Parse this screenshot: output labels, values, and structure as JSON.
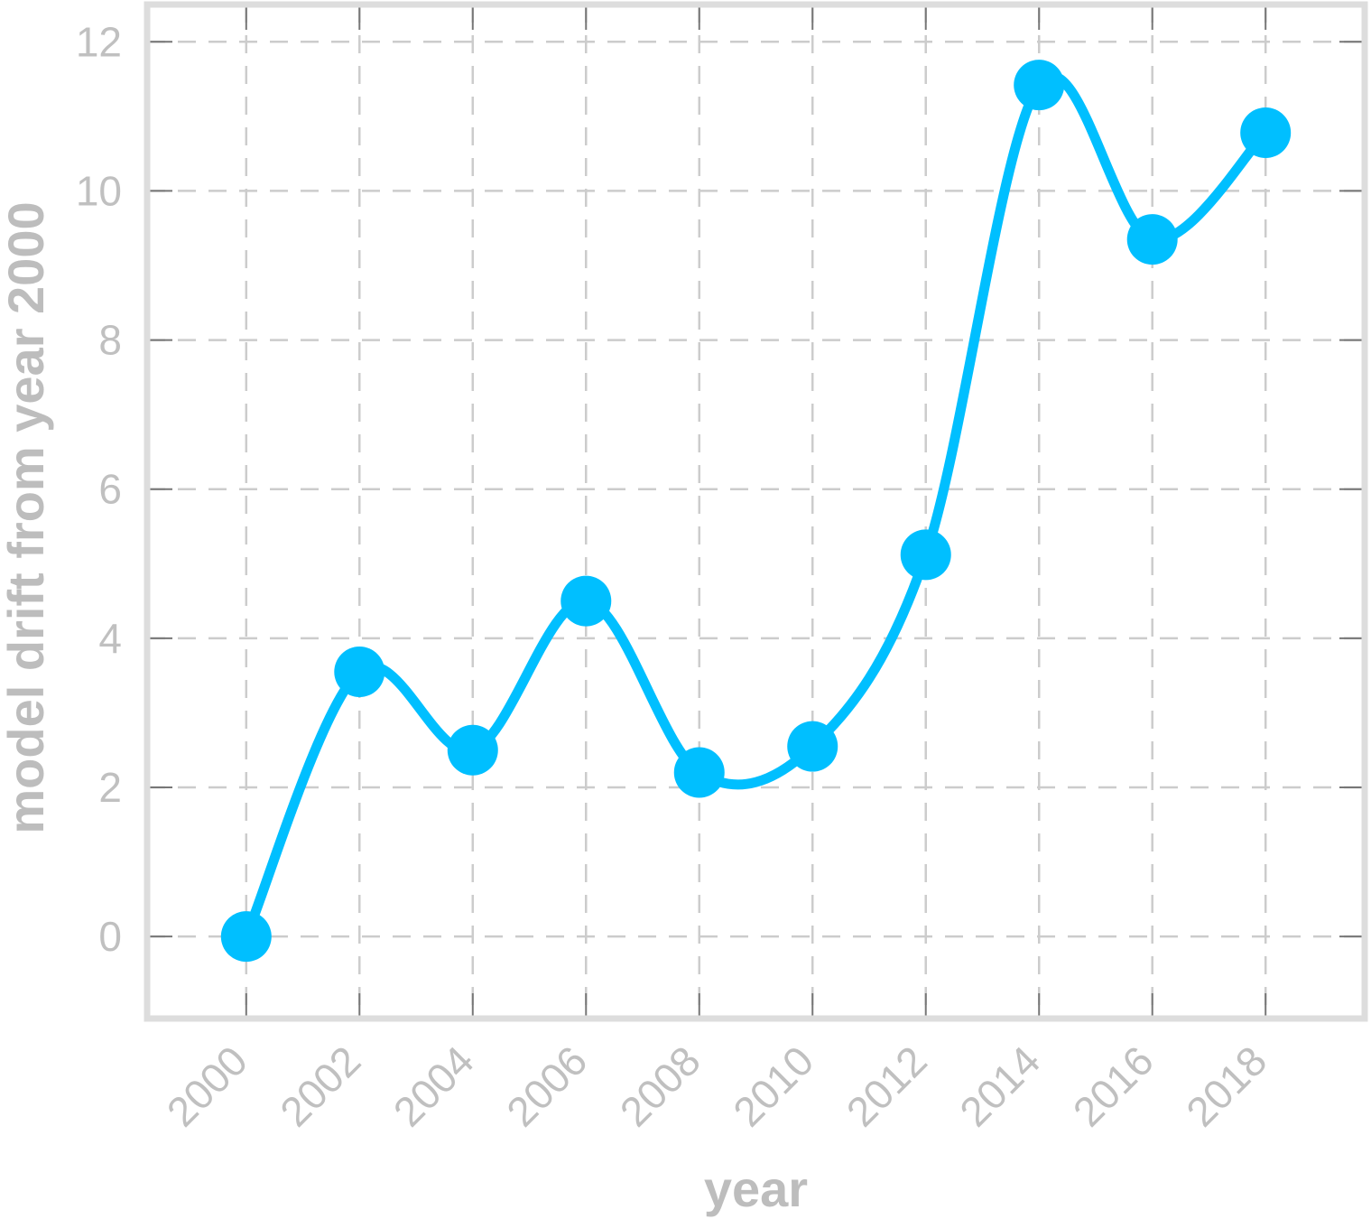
{
  "chart_data": {
    "type": "line",
    "xlabel": "year",
    "ylabel": "model drift from year 2000",
    "x": [
      2000,
      2002,
      2004,
      2006,
      2008,
      2010,
      2012,
      2014,
      2016,
      2018
    ],
    "series": [
      {
        "values": [
          0.0,
          3.55,
          2.5,
          4.5,
          2.2,
          2.55,
          5.12,
          11.42,
          9.35,
          10.78
        ]
      }
    ],
    "xlim": [
      1998.25,
      2019.75
    ],
    "ylim": [
      -1.1,
      12.5
    ],
    "xticks": [
      "2000",
      "2002",
      "2004",
      "2006",
      "2008",
      "2010",
      "2012",
      "2014",
      "2016",
      "2018"
    ],
    "yticks": [
      "0",
      "2",
      "4",
      "6",
      "8",
      "10",
      "12"
    ],
    "grid": true,
    "smooth": true,
    "legend": "none",
    "colors": {
      "line": "#00bfff",
      "grid": "#cccccc",
      "frame": "#dddddd",
      "tick_mark": "#777777",
      "text": "#c0c0c0"
    }
  }
}
